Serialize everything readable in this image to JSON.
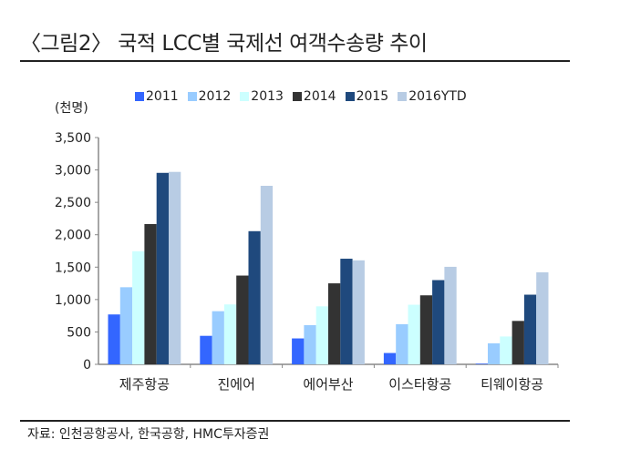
{
  "title": "〈그림2〉 국적 LCC별 국제선 여객수송량 추이",
  "source": "자료: 인천공항공사, 한국공항, HMC투자증권",
  "chart_data": {
    "type": "bar",
    "title": "〈그림2〉 국적 LCC별 국제선 여객수송량 추이",
    "unit_label": "(천명)",
    "categories": [
      "제주항공",
      "진에어",
      "에어부산",
      "이스타항공",
      "티웨이항공"
    ],
    "series": [
      {
        "name": "2011",
        "color": "#3366ff",
        "values": [
          770,
          440,
          400,
          175,
          10
        ]
      },
      {
        "name": "2012",
        "color": "#99ccff",
        "values": [
          1190,
          820,
          605,
          620,
          325
        ]
      },
      {
        "name": "2013",
        "color": "#ccffff",
        "values": [
          1745,
          925,
          895,
          920,
          430
        ]
      },
      {
        "name": "2014",
        "color": "#333333",
        "values": [
          2165,
          1370,
          1250,
          1065,
          670
        ]
      },
      {
        "name": "2015",
        "color": "#1f497d",
        "values": [
          2955,
          2055,
          1630,
          1300,
          1075
        ]
      },
      {
        "name": "2016YTD",
        "color": "#b8cce4",
        "values": [
          2970,
          2755,
          1605,
          1505,
          1420
        ]
      }
    ],
    "ylim": [
      0,
      3500
    ],
    "yticks": [
      "0",
      "500",
      "1,000",
      "1,500",
      "2,000",
      "2,500",
      "3,000",
      "3,500"
    ],
    "legend": "top",
    "grid": false
  }
}
